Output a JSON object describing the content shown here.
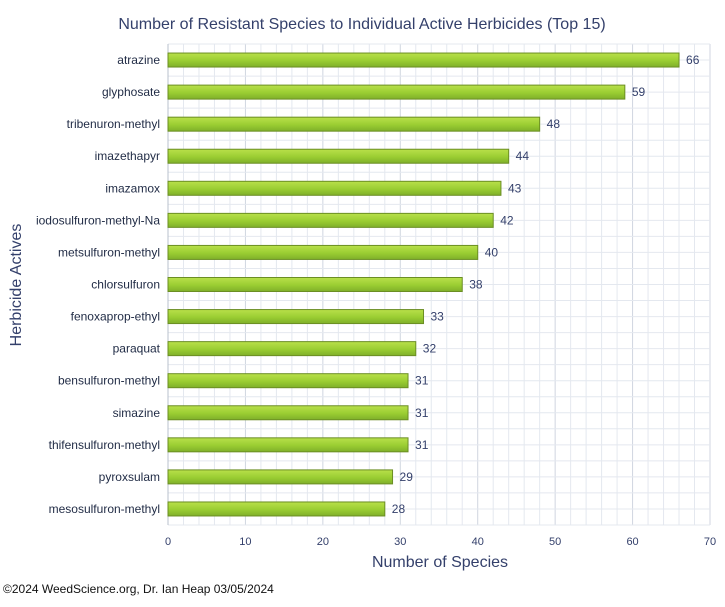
{
  "footer": "©2024 WeedScience.org, Dr. Ian Heap 03/05/2024",
  "chart_data": {
    "type": "bar",
    "orientation": "horizontal",
    "title": "Number of Resistant Species to Individual Active Herbicides (Top 15)",
    "xlabel": "Number of Species",
    "ylabel": "Herbicide Actives",
    "xlim": [
      0,
      70
    ],
    "x_ticks": [
      0,
      10,
      20,
      30,
      40,
      50,
      60,
      70
    ],
    "grid": true,
    "bar_color": "#9acd32",
    "bar_edge_color": "#6b8e23",
    "categories": [
      "atrazine",
      "glyphosate",
      "tribenuron-methyl",
      "imazethapyr",
      "imazamox",
      "iodosulfuron-methyl-Na",
      "metsulfuron-methyl",
      "chlorsulfuron",
      "fenoxaprop-ethyl",
      "paraquat",
      "bensulfuron-methyl",
      "simazine",
      "thifensulfuron-methyl",
      "pyroxsulam",
      "mesosulfuron-methyl"
    ],
    "values": [
      66,
      59,
      48,
      44,
      43,
      42,
      40,
      38,
      33,
      32,
      31,
      31,
      31,
      29,
      28
    ]
  }
}
